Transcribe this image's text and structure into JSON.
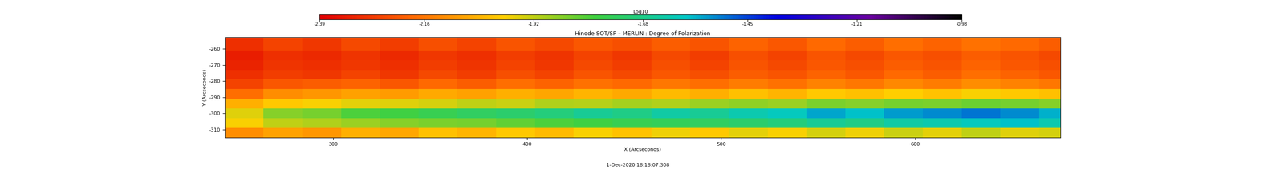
{
  "chart_data": {
    "type": "heatmap",
    "title": "Hinode SOT/SP – MERLIN : Degree of Polarization",
    "x_label": "X (Arcseconds)",
    "y_label": "Y (Arcseconds)",
    "annotation": "1-Dec-2020 18:18:07.308",
    "colorbar_label": "Log10",
    "xlim": [
      244,
      675
    ],
    "ylim": [
      -315,
      -253
    ],
    "xticks": [
      300,
      400,
      500,
      600
    ],
    "yticks": [
      -310,
      -300,
      -290,
      -280,
      -270,
      -260
    ],
    "x": [
      244,
      264,
      284,
      304,
      324,
      344,
      364,
      384,
      404,
      424,
      444,
      464,
      484,
      504,
      524,
      544,
      564,
      584,
      604,
      624,
      644,
      664,
      675
    ],
    "y": [
      -315,
      -309,
      -303,
      -297,
      -291,
      -285,
      -279,
      -273,
      -267,
      -261,
      -253
    ],
    "cells": [
      [
        -2.12,
        -2.08,
        -2.1,
        -2.05,
        -2.07,
        -2.02,
        -2.04,
        -2.0,
        -2.03,
        -1.98,
        -2.01,
        -1.97,
        -2.0,
        -1.96,
        -1.98,
        -1.94,
        -1.97,
        -1.93,
        -1.96,
        -1.92,
        -1.95,
        -1.94
      ],
      [
        -1.98,
        -1.92,
        -1.9,
        -1.88,
        -1.86,
        -1.85,
        -1.84,
        -1.82,
        -1.8,
        -1.78,
        -1.76,
        -1.75,
        -1.74,
        -1.72,
        -1.7,
        -1.66,
        -1.68,
        -1.64,
        -1.62,
        -1.6,
        -1.58,
        -1.62
      ],
      [
        -1.95,
        -1.86,
        -1.84,
        -1.8,
        -1.78,
        -1.76,
        -1.74,
        -1.72,
        -1.7,
        -1.66,
        -1.68,
        -1.64,
        -1.66,
        -1.62,
        -1.6,
        -1.55,
        -1.58,
        -1.54,
        -1.52,
        -1.5,
        -1.52,
        -1.56
      ],
      [
        -2.05,
        -2.0,
        -1.98,
        -1.96,
        -1.95,
        -1.94,
        -1.92,
        -1.93,
        -1.9,
        -1.91,
        -1.89,
        -1.9,
        -1.88,
        -1.87,
        -1.88,
        -1.85,
        -1.86,
        -1.84,
        -1.85,
        -1.83,
        -1.84,
        -1.86
      ],
      [
        -2.18,
        -2.12,
        -2.1,
        -2.08,
        -2.09,
        -2.06,
        -2.08,
        -2.05,
        -2.07,
        -2.04,
        -2.06,
        -2.03,
        -2.05,
        -2.02,
        -2.04,
        -2.0,
        -2.02,
        -1.99,
        -2.01,
        -1.98,
        -2.0,
        -2.02
      ],
      [
        -2.26,
        -2.22,
        -2.21,
        -2.2,
        -2.22,
        -2.19,
        -2.21,
        -2.18,
        -2.2,
        -2.17,
        -2.19,
        -2.16,
        -2.18,
        -2.15,
        -2.17,
        -2.14,
        -2.16,
        -2.13,
        -2.15,
        -2.12,
        -2.14,
        -2.16
      ],
      [
        -2.3,
        -2.27,
        -2.28,
        -2.26,
        -2.28,
        -2.25,
        -2.27,
        -2.24,
        -2.26,
        -2.23,
        -2.25,
        -2.22,
        -2.24,
        -2.21,
        -2.23,
        -2.2,
        -2.22,
        -2.19,
        -2.21,
        -2.18,
        -2.2,
        -2.22
      ],
      [
        -2.32,
        -2.29,
        -2.3,
        -2.28,
        -2.3,
        -2.27,
        -2.29,
        -2.26,
        -2.28,
        -2.25,
        -2.27,
        -2.24,
        -2.26,
        -2.23,
        -2.25,
        -2.22,
        -2.24,
        -2.21,
        -2.23,
        -2.2,
        -2.22,
        -2.24
      ],
      [
        -2.33,
        -2.3,
        -2.31,
        -2.29,
        -2.31,
        -2.28,
        -2.3,
        -2.27,
        -2.29,
        -2.26,
        -2.28,
        -2.25,
        -2.27,
        -2.24,
        -2.26,
        -2.23,
        -2.25,
        -2.22,
        -2.24,
        -2.21,
        -2.23,
        -2.25
      ],
      [
        -2.3,
        -2.26,
        -2.28,
        -2.25,
        -2.27,
        -2.24,
        -2.26,
        -2.23,
        -2.25,
        -2.22,
        -2.24,
        -2.21,
        -2.23,
        -2.2,
        -2.22,
        -2.19,
        -2.21,
        -2.18,
        -2.2,
        -2.17,
        -2.19,
        -2.21
      ]
    ],
    "colorbar_range": [
      -2.39,
      -0.98
    ],
    "colorbar_ticks": [
      -2.39,
      -2.16,
      -1.92,
      -1.68,
      -1.45,
      -1.21,
      -0.98
    ]
  }
}
